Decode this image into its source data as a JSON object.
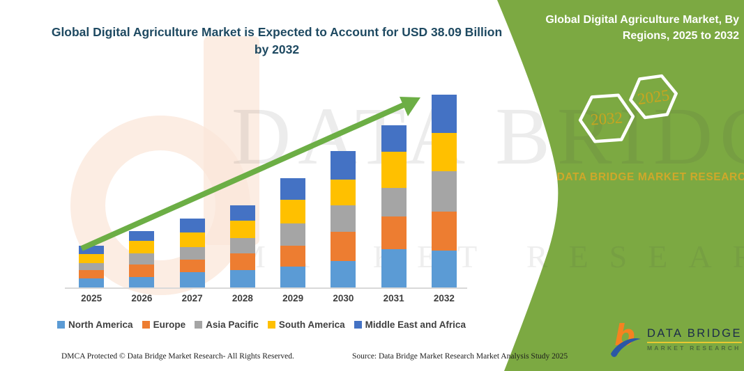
{
  "header": {
    "title": "Global Digital Agriculture Market is Expected to Account for USD 38.09 Billion by 2032"
  },
  "sidebar": {
    "title": "Global Digital Agriculture Market, By Regions, 2025 to 2032",
    "hexagon_back": "2032",
    "hexagon_front": "2025",
    "brand": "DATA BRIDGE MARKET RESEARCH"
  },
  "logo": {
    "name": "DATA BRIDGE",
    "subtitle": "MARKET RESEARCH"
  },
  "watermark": {
    "line1": "DATA BRIDGE",
    "line2": "MARKET RESEARCH"
  },
  "footer": {
    "left": "DMCA Protected © Data Bridge Market Research-  All Rights Reserved.",
    "right": "Source: Data Bridge Market Research  Market Analysis Study 2025"
  },
  "colors": {
    "panel_green": "#7CA942",
    "arrow_green": "#6CAE45",
    "title_blue": "#1E4961",
    "gold": "#C9A51F",
    "axis_gray": "#D9D9D9"
  },
  "chart_data": {
    "type": "bar",
    "stacked": true,
    "title": "Global Digital Agriculture Market is Expected to Account for USD 38.09 Billion by 2032",
    "unit": "USD Billion",
    "categories": [
      "2025",
      "2026",
      "2027",
      "2028",
      "2029",
      "2030",
      "2031",
      "2032"
    ],
    "series": [
      {
        "name": "North America",
        "color": "#5B9BD5",
        "values": [
          1.8,
          2.1,
          3.0,
          3.4,
          4.1,
          5.3,
          7.6,
          7.3
        ]
      },
      {
        "name": "Europe",
        "color": "#ED7D31",
        "values": [
          1.6,
          2.5,
          2.5,
          3.4,
          4.2,
          5.7,
          6.4,
          7.7
        ]
      },
      {
        "name": "Asia Pacific",
        "color": "#A5A5A5",
        "values": [
          1.4,
          2.1,
          2.5,
          3.0,
          4.3,
          5.3,
          5.7,
          7.9
        ]
      },
      {
        "name": "South America",
        "color": "#FFC000",
        "values": [
          1.8,
          2.5,
          2.8,
          3.4,
          4.8,
          5.0,
          7.1,
          7.6
        ]
      },
      {
        "name": "Middle East and Africa",
        "color": "#4472C4",
        "values": [
          1.7,
          1.9,
          2.8,
          3.0,
          4.2,
          5.7,
          5.3,
          7.6
        ]
      }
    ],
    "totals_estimated": [
      8.3,
      11.1,
      13.6,
      16.2,
      21.6,
      27.0,
      32.1,
      38.09
    ],
    "highlight_value_2032": 38.09,
    "ylim": [
      0,
      38.09
    ],
    "xlabel": "",
    "ylabel": "",
    "grid": false,
    "legend_position": "bottom",
    "trend_arrow": true
  }
}
